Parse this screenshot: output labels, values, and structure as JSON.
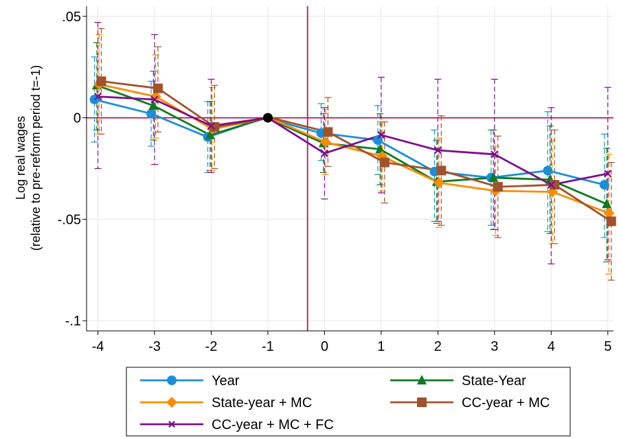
{
  "chart_data": {
    "type": "line",
    "ylabel_line1": "Log real wages",
    "ylabel_line2": "(relative to pre-reform period t=-1)",
    "xlabel": "",
    "categories": [
      "-4",
      "-3",
      "-2",
      "-1",
      "0",
      "1",
      "2",
      "3",
      "4",
      "5"
    ],
    "x": [
      -4,
      -3,
      -2,
      -1,
      0,
      1,
      2,
      3,
      4,
      5
    ],
    "xlim": [
      -4.2,
      5.1
    ],
    "ylim": [
      -0.105,
      0.055
    ],
    "yticks": [
      0.05,
      0,
      -0.05,
      -0.1
    ],
    "ytick_labels": [
      ".05",
      "0",
      "-.05",
      "-.1"
    ],
    "reference_hline": 0,
    "reference_vline": -0.3,
    "reference_color": "#b5164b",
    "grid": true,
    "legend_position": "bottom",
    "series": [
      {
        "name": "Year",
        "color": "#1a8fd8",
        "marker": "circle",
        "offset": -0.06,
        "values": [
          0.009,
          0.002,
          -0.0095,
          0,
          -0.0075,
          -0.011,
          -0.0265,
          -0.0295,
          -0.026,
          -0.033
        ],
        "ci_low": [
          -0.012,
          -0.014,
          -0.027,
          0,
          -0.021,
          -0.028,
          -0.051,
          -0.053,
          -0.056,
          -0.059
        ],
        "ci_high": [
          0.03,
          0.018,
          0.008,
          0,
          0.007,
          0.006,
          -0.006,
          -0.006,
          0.003,
          -0.008
        ]
      },
      {
        "name": "State-Year",
        "color": "#0f7a1f",
        "marker": "triangle",
        "offset": -0.02,
        "values": [
          0.016,
          0.006,
          -0.0085,
          0,
          -0.0125,
          -0.0155,
          -0.0315,
          -0.0295,
          -0.0305,
          -0.0425
        ],
        "ci_low": [
          -0.006,
          -0.011,
          -0.026,
          0,
          -0.027,
          -0.033,
          -0.052,
          -0.055,
          -0.057,
          -0.071
        ],
        "ci_high": [
          0.037,
          0.023,
          0.008,
          0,
          0.002,
          0.002,
          -0.011,
          -0.006,
          -0.004,
          -0.015
        ]
      },
      {
        "name": "State-year + MC",
        "color": "#fb8c00",
        "marker": "diamond",
        "offset": 0.02,
        "values": [
          0.0165,
          0.0105,
          -0.0055,
          0,
          -0.012,
          -0.019,
          -0.032,
          -0.036,
          -0.0365,
          -0.047
        ],
        "ci_low": [
          -0.008,
          -0.01,
          -0.026,
          0,
          -0.028,
          -0.036,
          -0.054,
          -0.058,
          -0.062,
          -0.077
        ],
        "ci_high": [
          0.041,
          0.031,
          0.015,
          0,
          0.004,
          -0.002,
          -0.01,
          -0.014,
          -0.011,
          -0.018
        ]
      },
      {
        "name": "CC-year + MC",
        "color": "#a0522d",
        "marker": "square",
        "offset": 0.06,
        "values": [
          0.018,
          0.0145,
          -0.0045,
          0,
          -0.007,
          -0.022,
          -0.026,
          -0.034,
          -0.033,
          -0.051
        ],
        "ci_low": [
          -0.008,
          -0.007,
          -0.025,
          0,
          -0.024,
          -0.042,
          -0.053,
          -0.059,
          -0.062,
          -0.08
        ],
        "ci_high": [
          0.044,
          0.035,
          0.016,
          0,
          0.01,
          -0.002,
          0.001,
          -0.009,
          -0.006,
          -0.022
        ]
      },
      {
        "name": "CC-year + MC + FC",
        "color": "#7b0f8a",
        "marker": "x",
        "offset": 0.0,
        "values": [
          0.0105,
          0.009,
          -0.004,
          0,
          -0.0175,
          -0.0085,
          -0.016,
          -0.018,
          -0.033,
          -0.0275
        ],
        "ci_low": [
          -0.025,
          -0.023,
          -0.027,
          0,
          -0.04,
          -0.037,
          -0.051,
          -0.055,
          -0.072,
          -0.07
        ],
        "ci_high": [
          0.047,
          0.041,
          0.019,
          0,
          0.005,
          0.02,
          0.019,
          0.019,
          0.005,
          0.015
        ]
      }
    ],
    "baseline_point": {
      "x": -1,
      "y": 0,
      "color": "#000000"
    }
  }
}
